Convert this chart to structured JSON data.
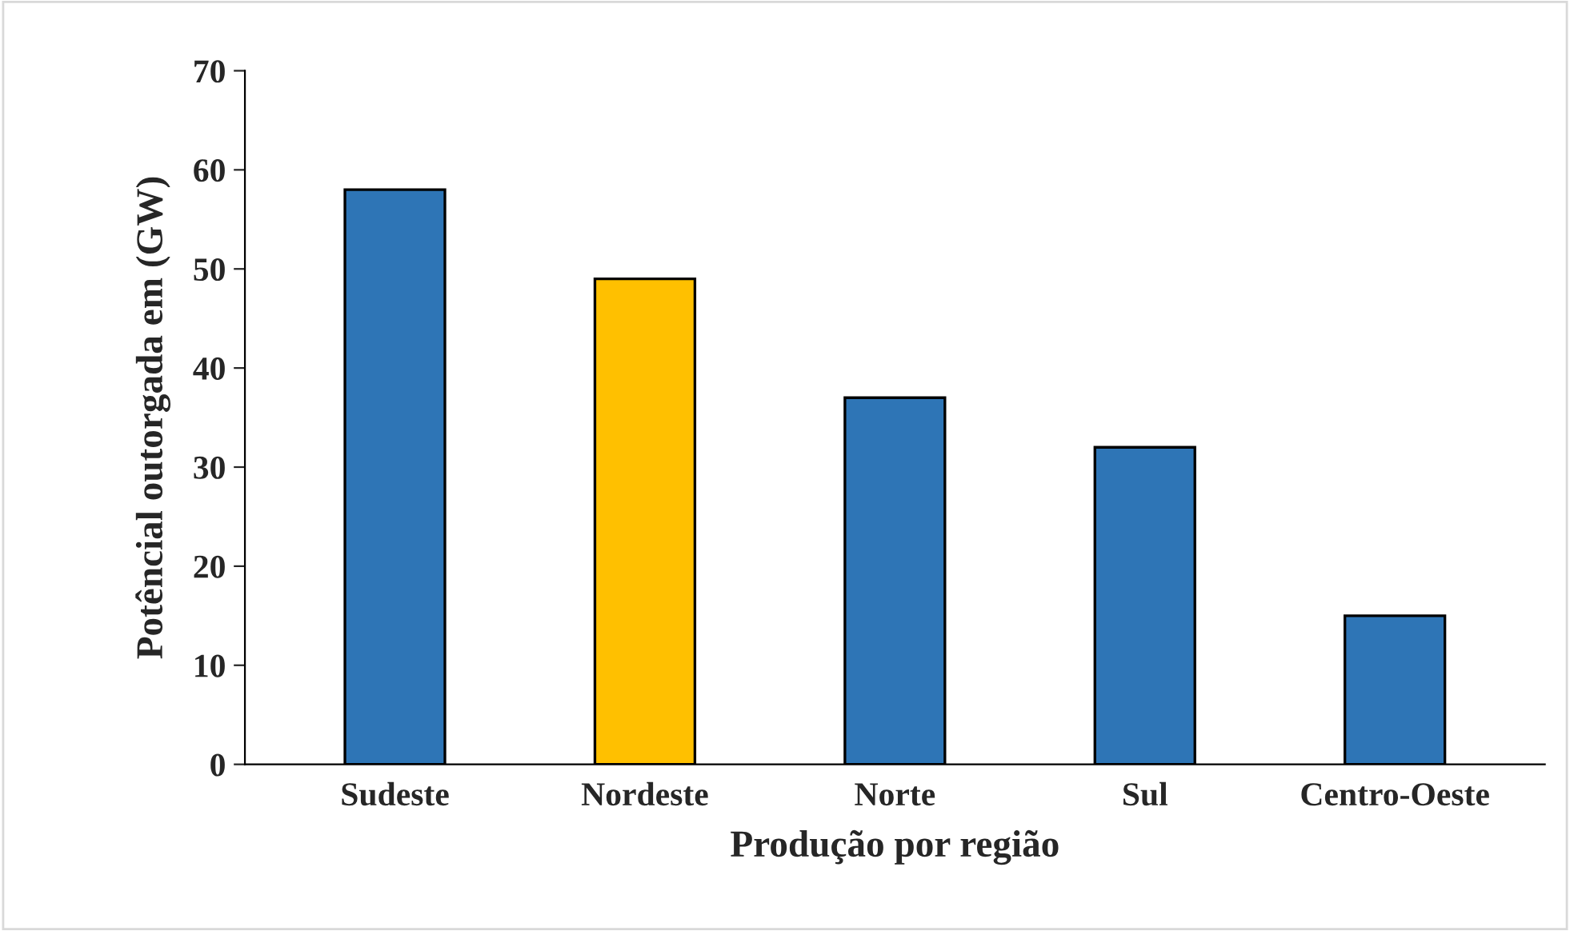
{
  "chart_data": {
    "type": "bar",
    "xlabel": "Produção por região",
    "ylabel": "Potêncial outorgada em (GW)",
    "categories": [
      "Sudeste",
      "Nordeste",
      "Norte",
      "Sul",
      "Centro-Oeste"
    ],
    "values": [
      58,
      49,
      37,
      32,
      15
    ],
    "colors": [
      "#2e75b6",
      "#ffc000",
      "#2e75b6",
      "#2e75b6",
      "#2e75b6"
    ],
    "ylim": [
      0,
      70
    ],
    "yticks": [
      0,
      10,
      20,
      30,
      40,
      50,
      60,
      70
    ],
    "grid": false,
    "legend": false
  }
}
